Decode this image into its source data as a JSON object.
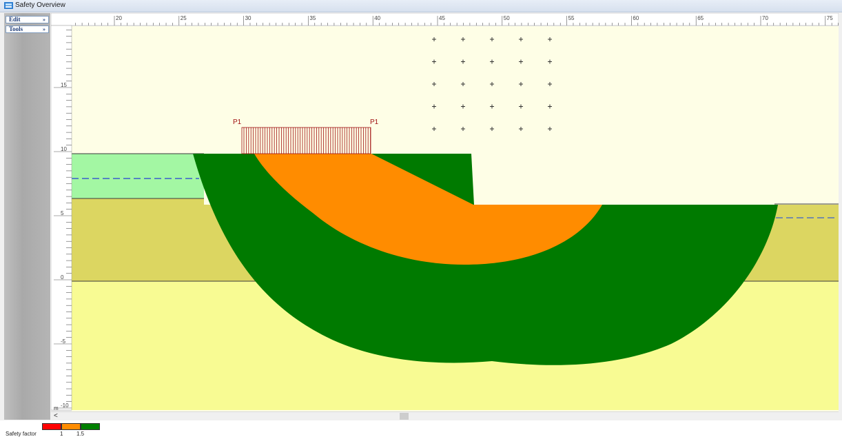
{
  "window": {
    "title": "Safety Overview"
  },
  "menu": {
    "edit_label": "Edit",
    "tools_label": "Tools",
    "chevron": "»"
  },
  "ruler": {
    "x_ticks": [
      "20",
      "25",
      "30",
      "35",
      "40",
      "45",
      "50",
      "55",
      "60",
      "65",
      "70",
      "75"
    ],
    "y_ticks": [
      "15",
      "10",
      "5",
      "0",
      "-5",
      "-10"
    ],
    "unit": "m"
  },
  "load": {
    "start_label": "P1",
    "end_label": "P1"
  },
  "scroll": {
    "left_arrow": "<"
  },
  "legend": {
    "label": "Safety factor",
    "ticks": [
      "1",
      "1.5"
    ],
    "colors": {
      "low": "#ff0000",
      "mid": "#ff8c00",
      "high": "#008000"
    }
  },
  "colors": {
    "sky": "#fefee6",
    "layer_top": "#a3f7a3",
    "layer_mid": "#dcd661",
    "layer_bottom": "#f8fb93",
    "slip_orange": "#ff8c00",
    "slip_green": "#007a00",
    "water": "#3a5fcd",
    "load": "#a01010"
  }
}
